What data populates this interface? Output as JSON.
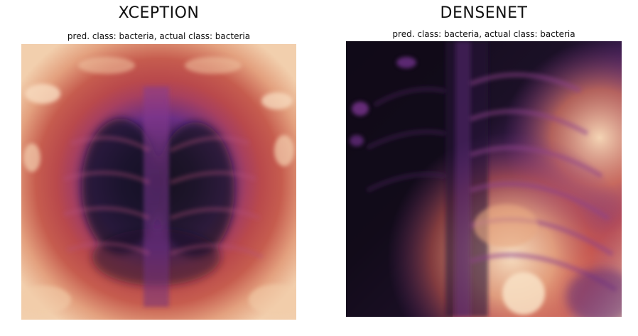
{
  "panels": [
    {
      "model_name": "XCEPTION",
      "caption": "pred. class: bacteria, actual class: bacteria"
    },
    {
      "model_name": "DENSENET",
      "caption": "pred. class: bacteria, actual class: bacteria"
    }
  ],
  "colors": {
    "colormap_dark": "#140d1c",
    "colormap_purple": "#6a2f85",
    "colormap_red": "#b9494c",
    "colormap_light": "#f0c9a4"
  }
}
